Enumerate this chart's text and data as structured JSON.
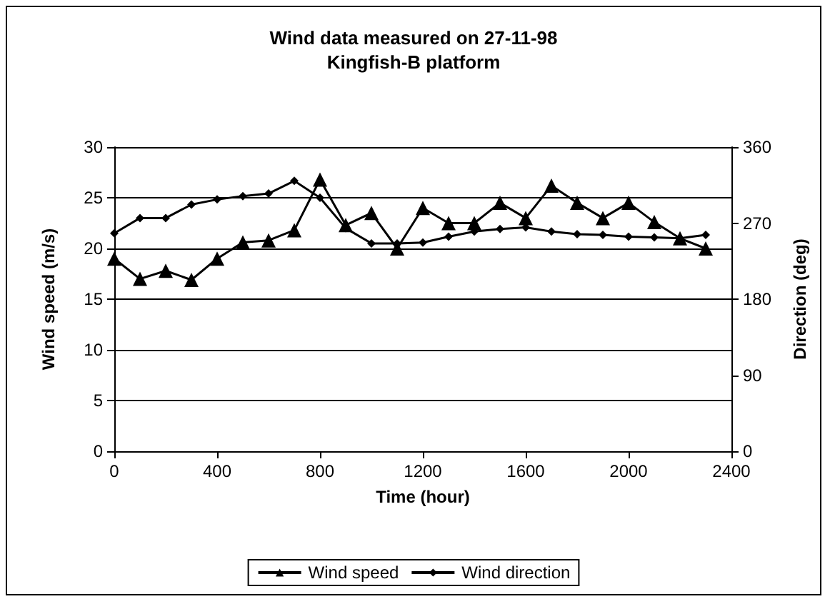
{
  "chart_data": {
    "type": "line",
    "title": "Wind data measured on 27-11-98",
    "subtitle": "Kingfish-B platform",
    "xlabel": "Time (hour)",
    "ylabel": "Wind speed (m/s)",
    "y2label": "Direction (deg)",
    "x": [
      0,
      100,
      200,
      300,
      400,
      500,
      600,
      700,
      800,
      900,
      1000,
      1100,
      1200,
      1300,
      1400,
      1500,
      1600,
      1700,
      1800,
      1900,
      2000,
      2100,
      2200,
      2300
    ],
    "series": [
      {
        "name": "Wind speed",
        "color": "#000000",
        "marker": "triangle",
        "values": [
          19,
          17,
          17.8,
          16.9,
          19,
          20.6,
          20.8,
          21.8,
          26.8,
          22.3,
          23.5,
          20,
          24,
          22.5,
          22.5,
          24.5,
          23,
          26.2,
          24.5,
          23,
          24.5,
          22.6,
          21,
          20
        ]
      },
      {
        "name": "Wind direction",
        "color": "#000000",
        "marker": "diamond",
        "axis": "y2",
        "values": [
          258,
          276,
          276,
          292,
          298,
          302,
          305,
          320,
          300,
          264,
          246,
          246,
          247,
          254,
          260,
          263,
          265,
          260,
          257,
          256,
          254,
          253,
          252,
          256
        ]
      }
    ],
    "xlim": [
      0,
      2400
    ],
    "xticks": [
      0,
      400,
      800,
      1200,
      1600,
      2000,
      2400
    ],
    "ylim": [
      0,
      30
    ],
    "yticks": [
      0,
      5,
      10,
      15,
      20,
      25,
      30
    ],
    "y2lim": [
      0,
      360
    ],
    "y2ticks": [
      0,
      90,
      180,
      270,
      360
    ],
    "grid": "y",
    "legend": "bottom",
    "line_style": "solid"
  }
}
